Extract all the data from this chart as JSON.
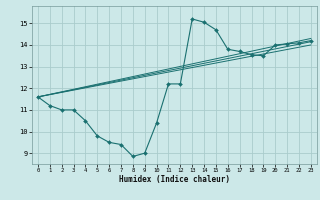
{
  "xlabel": "Humidex (Indice chaleur)",
  "background_color": "#cce8e8",
  "grid_color": "#aacccc",
  "line_color": "#1a7070",
  "xlim": [
    -0.5,
    23.5
  ],
  "ylim": [
    8.5,
    15.8
  ],
  "yticks": [
    9,
    10,
    11,
    12,
    13,
    14,
    15
  ],
  "xticks": [
    0,
    1,
    2,
    3,
    4,
    5,
    6,
    7,
    8,
    9,
    10,
    11,
    12,
    13,
    14,
    15,
    16,
    17,
    18,
    19,
    20,
    21,
    22,
    23
  ],
  "curve_x": [
    0,
    1,
    2,
    3,
    4,
    5,
    6,
    7,
    8,
    9,
    10,
    11,
    12,
    13,
    14,
    15,
    16,
    17,
    18,
    19,
    20,
    21,
    22,
    23
  ],
  "curve_y": [
    11.6,
    11.2,
    11.0,
    11.0,
    10.5,
    9.8,
    9.5,
    9.4,
    8.85,
    9.0,
    10.4,
    12.2,
    12.2,
    15.2,
    15.05,
    14.7,
    13.8,
    13.7,
    13.55,
    13.5,
    14.0,
    14.05,
    14.1,
    14.2
  ],
  "straight_lines": [
    {
      "x": [
        0,
        23
      ],
      "y": [
        11.6,
        14.3
      ]
    },
    {
      "x": [
        0,
        23
      ],
      "y": [
        11.6,
        14.15
      ]
    },
    {
      "x": [
        0,
        23
      ],
      "y": [
        11.6,
        14.0
      ]
    }
  ]
}
